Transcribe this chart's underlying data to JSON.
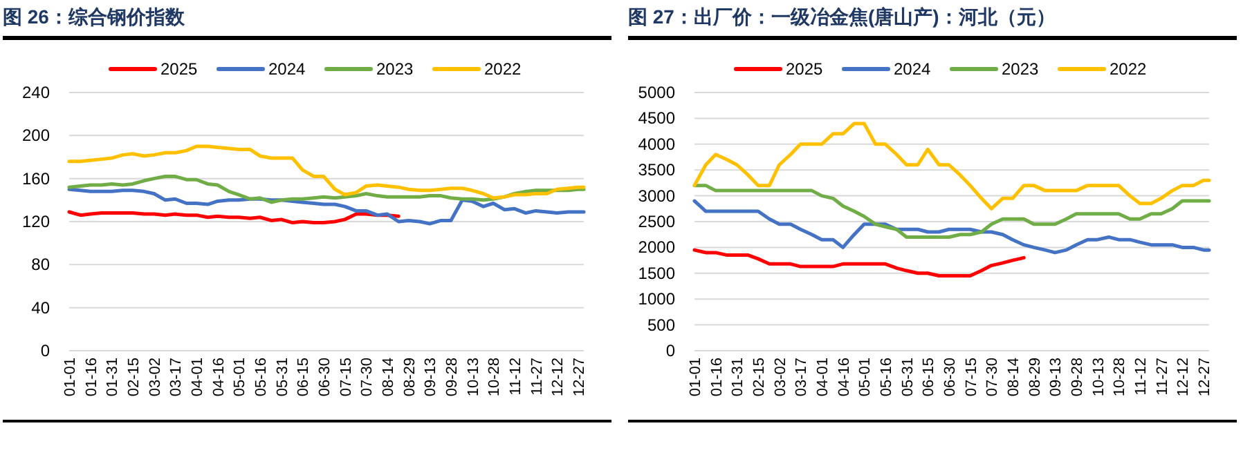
{
  "chart_data": [
    {
      "type": "line",
      "title": "图 26：综合钢价指数",
      "legend": "top",
      "grid": "y",
      "x": [
        "--01-01",
        "--01-09",
        "--01-16",
        "--01-24",
        "--01-31",
        "--02-08",
        "--02-15",
        "--02-23",
        "--03-02",
        "--03-10",
        "--03-17",
        "--03-25",
        "--04-01",
        "--04-09",
        "--04-16",
        "--04-24",
        "--05-01",
        "--05-09",
        "--05-16",
        "--05-24",
        "--05-31",
        "--06-08",
        "--06-15",
        "--06-23",
        "--06-30",
        "--07-08",
        "--07-15",
        "--07-23",
        "--07-30",
        "--08-07",
        "--08-14",
        "--08-22",
        "--08-29",
        "--09-06",
        "--09-13",
        "--09-21",
        "--09-28",
        "--10-06",
        "--10-13",
        "--10-21",
        "--10-28",
        "--11-05",
        "--11-12",
        "--11-20",
        "--11-27",
        "--12-05",
        "--12-12",
        "--12-20",
        "--12-27",
        "--12-31"
      ],
      "xlim": [
        "--01-01",
        "--12-31"
      ],
      "xticks": [
        {
          "value": "--01-01",
          "label": "01-01"
        },
        {
          "value": "--01-16",
          "label": "01-16"
        },
        {
          "value": "--01-31",
          "label": "01-31"
        },
        {
          "value": "--02-15",
          "label": "02-15"
        },
        {
          "value": "--03-02",
          "label": "03-02"
        },
        {
          "value": "--03-17",
          "label": "03-17"
        },
        {
          "value": "--04-01",
          "label": "04-01"
        },
        {
          "value": "--04-16",
          "label": "04-16"
        },
        {
          "value": "--05-01",
          "label": "05-01"
        },
        {
          "value": "--05-16",
          "label": "05-16"
        },
        {
          "value": "--05-31",
          "label": "05-31"
        },
        {
          "value": "--06-15",
          "label": "06-15"
        },
        {
          "value": "--06-30",
          "label": "06-30"
        },
        {
          "value": "--07-15",
          "label": "07-15"
        },
        {
          "value": "--07-30",
          "label": "07-30"
        },
        {
          "value": "--08-14",
          "label": "08-14"
        },
        {
          "value": "--08-29",
          "label": "08-29"
        },
        {
          "value": "--09-13",
          "label": "09-13"
        },
        {
          "value": "--09-28",
          "label": "09-28"
        },
        {
          "value": "--10-13",
          "label": "10-13"
        },
        {
          "value": "--10-28",
          "label": "10-28"
        },
        {
          "value": "--11-12",
          "label": "11-12"
        },
        {
          "value": "--11-27",
          "label": "11-27"
        },
        {
          "value": "--12-12",
          "label": "12-12"
        },
        {
          "value": "--12-27",
          "label": "12-27"
        }
      ],
      "ylim": [
        0,
        240
      ],
      "yticks": [
        0,
        40,
        80,
        120,
        160,
        200,
        240
      ],
      "series": [
        {
          "name": "2025",
          "color": "#ff0000",
          "values": [
            129,
            126,
            127,
            128,
            128,
            128,
            128,
            127,
            127,
            126,
            127,
            126,
            126,
            124,
            125,
            124,
            124,
            123,
            124,
            121,
            122,
            119,
            120,
            119,
            119,
            120,
            122,
            127,
            127,
            126,
            126,
            125,
            null,
            null,
            null,
            null,
            null,
            null,
            null,
            null,
            null,
            null,
            null,
            null,
            null,
            null,
            null,
            null,
            null,
            null
          ]
        },
        {
          "name": "2024",
          "color": "#4472c4",
          "values": [
            150,
            149,
            148,
            148,
            148,
            149,
            149,
            148,
            146,
            140,
            141,
            137,
            137,
            136,
            139,
            140,
            140,
            141,
            141,
            140,
            140,
            139,
            138,
            137,
            136,
            136,
            134,
            130,
            130,
            126,
            127,
            120,
            121,
            120,
            118,
            121,
            121,
            140,
            139,
            134,
            137,
            131,
            132,
            128,
            130,
            129,
            128,
            129,
            129,
            129
          ]
        },
        {
          "name": "2023",
          "color": "#70ad47",
          "values": [
            152,
            153,
            154,
            154,
            155,
            154,
            155,
            158,
            160,
            162,
            162,
            159,
            159,
            155,
            154,
            148,
            145,
            141,
            142,
            138,
            140,
            141,
            141,
            142,
            143,
            142,
            143,
            144,
            146,
            144,
            143,
            143,
            143,
            143,
            144,
            144,
            142,
            141,
            141,
            140,
            141,
            143,
            146,
            148,
            149,
            149,
            149,
            149,
            150,
            150
          ]
        },
        {
          "name": "2022",
          "color": "#ffc000",
          "values": [
            176,
            176,
            177,
            178,
            179,
            182,
            183,
            181,
            182,
            184,
            184,
            186,
            190,
            190,
            189,
            188,
            187,
            187,
            181,
            179,
            179,
            179,
            168,
            162,
            162,
            150,
            145,
            147,
            153,
            154,
            153,
            152,
            150,
            149,
            149,
            150,
            151,
            151,
            149,
            146,
            142,
            143,
            145,
            145,
            146,
            146,
            150,
            151,
            152,
            152
          ]
        }
      ]
    },
    {
      "type": "line",
      "title": "图 27：出厂价：一级冶金焦(唐山产)：河北（元）",
      "legend": "top",
      "grid": "y",
      "x": [
        "--01-01",
        "--01-09",
        "--01-16",
        "--01-24",
        "--01-31",
        "--02-08",
        "--02-15",
        "--02-23",
        "--03-02",
        "--03-10",
        "--03-17",
        "--03-25",
        "--04-01",
        "--04-09",
        "--04-16",
        "--04-24",
        "--05-01",
        "--05-09",
        "--05-16",
        "--05-24",
        "--05-31",
        "--06-08",
        "--06-15",
        "--06-23",
        "--06-30",
        "--07-08",
        "--07-15",
        "--07-23",
        "--07-30",
        "--08-07",
        "--08-14",
        "--08-22",
        "--08-29",
        "--09-06",
        "--09-13",
        "--09-21",
        "--09-28",
        "--10-06",
        "--10-13",
        "--10-21",
        "--10-28",
        "--11-05",
        "--11-12",
        "--11-20",
        "--11-27",
        "--12-05",
        "--12-12",
        "--12-20",
        "--12-27",
        "--12-31"
      ],
      "xlim": [
        "--01-01",
        "--12-31"
      ],
      "xticks": [
        {
          "value": "--01-01",
          "label": "01-01"
        },
        {
          "value": "--01-16",
          "label": "01-16"
        },
        {
          "value": "--01-31",
          "label": "01-31"
        },
        {
          "value": "--02-15",
          "label": "02-15"
        },
        {
          "value": "--03-02",
          "label": "03-02"
        },
        {
          "value": "--03-17",
          "label": "03-17"
        },
        {
          "value": "--04-01",
          "label": "04-01"
        },
        {
          "value": "--04-16",
          "label": "04-16"
        },
        {
          "value": "--05-01",
          "label": "05-01"
        },
        {
          "value": "--05-16",
          "label": "05-16"
        },
        {
          "value": "--05-31",
          "label": "05-31"
        },
        {
          "value": "--06-15",
          "label": "06-15"
        },
        {
          "value": "--06-30",
          "label": "06-30"
        },
        {
          "value": "--07-15",
          "label": "07-15"
        },
        {
          "value": "--07-30",
          "label": "07-30"
        },
        {
          "value": "--08-14",
          "label": "08-14"
        },
        {
          "value": "--08-29",
          "label": "08-29"
        },
        {
          "value": "--09-13",
          "label": "09-13"
        },
        {
          "value": "--09-28",
          "label": "09-28"
        },
        {
          "value": "--10-13",
          "label": "10-13"
        },
        {
          "value": "--10-28",
          "label": "10-28"
        },
        {
          "value": "--11-12",
          "label": "11-12"
        },
        {
          "value": "--11-27",
          "label": "11-27"
        },
        {
          "value": "--12-12",
          "label": "12-12"
        },
        {
          "value": "--12-27",
          "label": "12-27"
        }
      ],
      "ylim": [
        0,
        5000
      ],
      "yticks": [
        0,
        500,
        1000,
        1500,
        2000,
        2500,
        3000,
        3500,
        4000,
        4500,
        5000
      ],
      "series": [
        {
          "name": "2025",
          "color": "#ff0000",
          "values": [
            1950,
            1900,
            1900,
            1850,
            1850,
            1850,
            1780,
            1680,
            1680,
            1680,
            1630,
            1630,
            1630,
            1630,
            1680,
            1680,
            1680,
            1680,
            1680,
            1600,
            1550,
            1500,
            1500,
            1450,
            1450,
            1450,
            1450,
            1550,
            1650,
            1700,
            1750,
            1800,
            null,
            null,
            null,
            null,
            null,
            null,
            null,
            null,
            null,
            null,
            null,
            null,
            null,
            null,
            null,
            null,
            null,
            null
          ]
        },
        {
          "name": "2024",
          "color": "#4472c4",
          "values": [
            2900,
            2700,
            2700,
            2700,
            2700,
            2700,
            2700,
            2550,
            2450,
            2450,
            2350,
            2250,
            2150,
            2150,
            2000,
            2250,
            2450,
            2450,
            2450,
            2350,
            2350,
            2350,
            2300,
            2300,
            2350,
            2350,
            2350,
            2300,
            2300,
            2250,
            2150,
            2050,
            2000,
            1950,
            1900,
            1950,
            2050,
            2150,
            2150,
            2200,
            2150,
            2150,
            2100,
            2050,
            2050,
            2050,
            2000,
            2000,
            1950,
            1950
          ]
        },
        {
          "name": "2023",
          "color": "#70ad47",
          "values": [
            3200,
            3200,
            3100,
            3100,
            3100,
            3100,
            3100,
            3100,
            3100,
            3100,
            3100,
            3100,
            3000,
            2950,
            2800,
            2700,
            2600,
            2450,
            2400,
            2350,
            2200,
            2200,
            2200,
            2200,
            2200,
            2250,
            2250,
            2300,
            2450,
            2550,
            2550,
            2550,
            2450,
            2450,
            2450,
            2550,
            2650,
            2650,
            2650,
            2650,
            2650,
            2550,
            2550,
            2650,
            2650,
            2750,
            2900,
            2900,
            2900,
            2900
          ]
        },
        {
          "name": "2022",
          "color": "#ffc000",
          "values": [
            3200,
            3600,
            3800,
            3700,
            3600,
            3400,
            3200,
            3200,
            3600,
            3800,
            4000,
            4000,
            4000,
            4200,
            4200,
            4400,
            4400,
            4000,
            4000,
            3800,
            3600,
            3600,
            3900,
            3600,
            3600,
            3400,
            3200,
            2950,
            2750,
            2950,
            2950,
            3200,
            3200,
            3100,
            3100,
            3100,
            3100,
            3200,
            3200,
            3200,
            3200,
            3000,
            2850,
            2850,
            2950,
            3100,
            3200,
            3200,
            3300,
            3300
          ]
        }
      ]
    }
  ]
}
